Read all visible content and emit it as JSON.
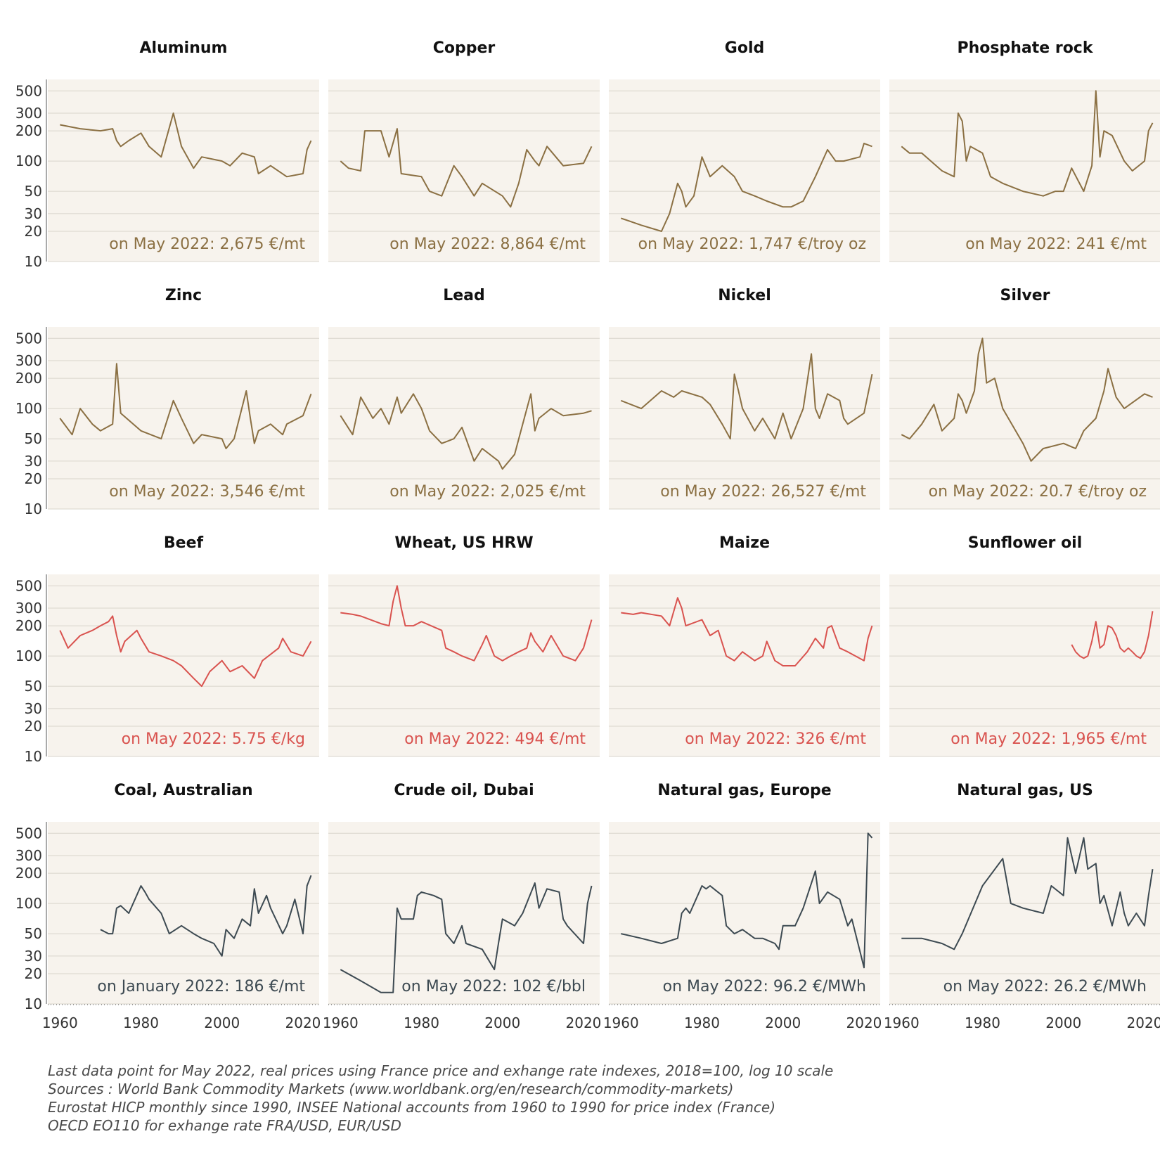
{
  "colors": {
    "panel_bg": "#f7f3ed",
    "grid": "#d9d4cc",
    "metals": "#8b7043",
    "food": "#d9534f",
    "energy": "#3d4a52",
    "title": "#111111",
    "tick": "#333333"
  },
  "footer": {
    "line1": "Last data point for May 2022, real prices using France price and exhange rate indexes, 2018=100, log 10 scale",
    "line2": "Sources : World Bank Commodity Markets (www.worldbank.org/en/research/commodity-markets)",
    "line3": "Eurostat HICP monthly since 1990, INSEE National accounts from 1960 to 1990 for price index (France)",
    "line4": "OECD EO110 for exhange rate FRA/USD, EUR/USD"
  },
  "chart_data": [
    {
      "type": "line",
      "title": "Aluminum",
      "annotation": "on May 2022: 2,675 €/mt",
      "color_group": "metals",
      "x": [
        1960,
        1965,
        1970,
        1973,
        1974,
        1975,
        1977,
        1980,
        1982,
        1985,
        1988,
        1990,
        1993,
        1995,
        2000,
        2002,
        2005,
        2008,
        2009,
        2012,
        2016,
        2020,
        2021,
        2022
      ],
      "values": [
        230,
        210,
        200,
        210,
        160,
        140,
        160,
        190,
        140,
        110,
        300,
        140,
        85,
        110,
        100,
        90,
        120,
        110,
        75,
        90,
        70,
        75,
        130,
        160
      ]
    },
    {
      "type": "line",
      "title": "Copper",
      "annotation": "on May 2022: 8,864 €/mt",
      "color_group": "metals",
      "x": [
        1960,
        1962,
        1965,
        1966,
        1970,
        1972,
        1974,
        1975,
        1980,
        1982,
        1985,
        1988,
        1990,
        1993,
        1995,
        2000,
        2002,
        2004,
        2006,
        2008,
        2009,
        2011,
        2015,
        2020,
        2022
      ],
      "values": [
        100,
        85,
        80,
        200,
        200,
        110,
        210,
        75,
        70,
        50,
        45,
        90,
        70,
        45,
        60,
        45,
        35,
        60,
        130,
        100,
        90,
        140,
        90,
        95,
        140
      ]
    },
    {
      "type": "line",
      "title": "Gold",
      "annotation": "on May 2022: 1,747 €/troy oz",
      "color_group": "metals",
      "x": [
        1960,
        1965,
        1970,
        1972,
        1974,
        1975,
        1976,
        1978,
        1980,
        1982,
        1985,
        1988,
        1990,
        1993,
        1996,
        2000,
        2002,
        2005,
        2008,
        2011,
        2013,
        2015,
        2019,
        2020,
        2022
      ],
      "values": [
        27,
        23,
        20,
        30,
        60,
        50,
        35,
        45,
        110,
        70,
        90,
        70,
        50,
        45,
        40,
        35,
        35,
        40,
        70,
        130,
        100,
        100,
        110,
        150,
        140
      ]
    },
    {
      "type": "line",
      "title": "Phosphate rock",
      "annotation": "on May 2022: 241 €/mt",
      "color_group": "metals",
      "x": [
        1960,
        1962,
        1965,
        1970,
        1973,
        1974,
        1975,
        1976,
        1977,
        1980,
        1982,
        1985,
        1990,
        1995,
        1998,
        2000,
        2002,
        2005,
        2007,
        2008,
        2009,
        2010,
        2012,
        2015,
        2017,
        2020,
        2021,
        2022
      ],
      "values": [
        140,
        120,
        120,
        80,
        70,
        300,
        250,
        100,
        140,
        120,
        70,
        60,
        50,
        45,
        50,
        50,
        85,
        50,
        90,
        500,
        110,
        200,
        180,
        100,
        80,
        100,
        200,
        240
      ]
    },
    {
      "type": "line",
      "title": "Zinc",
      "annotation": "on May 2022: 3,546 €/mt",
      "color_group": "metals",
      "x": [
        1960,
        1963,
        1965,
        1968,
        1970,
        1973,
        1974,
        1975,
        1980,
        1985,
        1988,
        1990,
        1993,
        1995,
        2000,
        2001,
        2003,
        2006,
        2007,
        2008,
        2009,
        2012,
        2015,
        2016,
        2020,
        2022
      ],
      "values": [
        80,
        55,
        100,
        70,
        60,
        70,
        280,
        90,
        60,
        50,
        120,
        80,
        45,
        55,
        50,
        40,
        50,
        150,
        80,
        45,
        60,
        70,
        55,
        70,
        85,
        140
      ]
    },
    {
      "type": "line",
      "title": "Lead",
      "annotation": "on May 2022: 2,025 €/mt",
      "color_group": "metals",
      "x": [
        1960,
        1963,
        1965,
        1968,
        1970,
        1972,
        1974,
        1975,
        1978,
        1980,
        1982,
        1985,
        1988,
        1990,
        1993,
        1995,
        1999,
        2000,
        2003,
        2005,
        2007,
        2008,
        2009,
        2012,
        2015,
        2020,
        2022
      ],
      "values": [
        85,
        55,
        130,
        80,
        100,
        70,
        130,
        90,
        140,
        100,
        60,
        45,
        50,
        65,
        30,
        40,
        30,
        25,
        35,
        70,
        140,
        60,
        80,
        100,
        85,
        90,
        95
      ]
    },
    {
      "type": "line",
      "title": "Nickel",
      "annotation": "on May 2022: 26,527 €/mt",
      "color_group": "metals",
      "x": [
        1960,
        1965,
        1970,
        1973,
        1975,
        1980,
        1982,
        1985,
        1987,
        1988,
        1989,
        1990,
        1993,
        1995,
        1998,
        2000,
        2002,
        2005,
        2007,
        2008,
        2009,
        2011,
        2014,
        2015,
        2016,
        2020,
        2022
      ],
      "values": [
        120,
        100,
        150,
        130,
        150,
        130,
        110,
        70,
        50,
        220,
        150,
        100,
        60,
        80,
        50,
        90,
        50,
        100,
        350,
        100,
        80,
        140,
        120,
        80,
        70,
        90,
        220
      ]
    },
    {
      "type": "line",
      "title": "Silver",
      "annotation": "on May 2022: 20.7 €/troy oz",
      "color_group": "metals",
      "x": [
        1960,
        1962,
        1965,
        1968,
        1970,
        1973,
        1974,
        1975,
        1976,
        1978,
        1979,
        1980,
        1981,
        1983,
        1985,
        1990,
        1992,
        1995,
        2000,
        2003,
        2005,
        2008,
        2010,
        2011,
        2013,
        2015,
        2020,
        2022
      ],
      "values": [
        55,
        50,
        70,
        110,
        60,
        80,
        140,
        120,
        90,
        150,
        350,
        500,
        180,
        200,
        100,
        45,
        30,
        40,
        45,
        40,
        60,
        80,
        150,
        250,
        130,
        100,
        140,
        130
      ]
    },
    {
      "type": "line",
      "title": "Beef",
      "annotation": "on May 2022: 5.75 €/kg",
      "color_group": "food",
      "x": [
        1960,
        1962,
        1965,
        1968,
        1970,
        1972,
        1973,
        1974,
        1975,
        1976,
        1979,
        1980,
        1982,
        1985,
        1988,
        1990,
        1993,
        1995,
        1997,
        2000,
        2002,
        2005,
        2008,
        2010,
        2014,
        2015,
        2017,
        2020,
        2022
      ],
      "values": [
        180,
        120,
        160,
        180,
        200,
        220,
        250,
        160,
        110,
        140,
        180,
        150,
        110,
        100,
        90,
        80,
        60,
        50,
        70,
        90,
        70,
        80,
        60,
        90,
        120,
        150,
        110,
        100,
        140
      ]
    },
    {
      "type": "line",
      "title": "Wheat, US HRW",
      "annotation": "on May 2022: 494 €/mt",
      "color_group": "food",
      "x": [
        1960,
        1963,
        1965,
        1970,
        1972,
        1973,
        1974,
        1975,
        1976,
        1978,
        1980,
        1985,
        1986,
        1988,
        1990,
        1993,
        1995,
        1996,
        1998,
        2000,
        2002,
        2004,
        2006,
        2007,
        2008,
        2010,
        2012,
        2015,
        2018,
        2020,
        2022
      ],
      "values": [
        270,
        260,
        250,
        210,
        200,
        350,
        500,
        300,
        200,
        200,
        220,
        180,
        120,
        110,
        100,
        90,
        130,
        160,
        100,
        90,
        100,
        110,
        120,
        170,
        140,
        110,
        160,
        100,
        90,
        120,
        230
      ]
    },
    {
      "type": "line",
      "title": "Maize",
      "annotation": "on May 2022: 326 €/mt",
      "color_group": "food",
      "x": [
        1960,
        1963,
        1965,
        1970,
        1972,
        1974,
        1975,
        1976,
        1980,
        1982,
        1984,
        1986,
        1988,
        1990,
        1993,
        1995,
        1996,
        1998,
        2000,
        2003,
        2006,
        2008,
        2010,
        2011,
        2012,
        2014,
        2016,
        2020,
        2021,
        2022
      ],
      "values": [
        270,
        260,
        270,
        250,
        200,
        380,
        300,
        200,
        230,
        160,
        180,
        100,
        90,
        110,
        90,
        100,
        140,
        90,
        80,
        80,
        110,
        150,
        120,
        190,
        200,
        120,
        110,
        90,
        150,
        200
      ]
    },
    {
      "type": "line",
      "title": "Sunflower oil",
      "annotation": "on May 2022: 1,965 €/mt",
      "color_group": "food",
      "x": [
        2002,
        2003,
        2004,
        2005,
        2006,
        2007,
        2008,
        2009,
        2010,
        2011,
        2012,
        2013,
        2014,
        2015,
        2016,
        2017,
        2018,
        2019,
        2020,
        2021,
        2022
      ],
      "values": [
        130,
        110,
        100,
        95,
        100,
        140,
        220,
        120,
        130,
        200,
        190,
        160,
        120,
        110,
        120,
        110,
        100,
        95,
        110,
        160,
        280
      ]
    },
    {
      "type": "line",
      "title": "Coal, Australian",
      "annotation": "on January 2022: 186 €/mt",
      "color_group": "energy",
      "x": [
        1970,
        1972,
        1973,
        1974,
        1975,
        1977,
        1980,
        1981,
        1982,
        1985,
        1987,
        1990,
        1993,
        1995,
        1998,
        2000,
        2001,
        2003,
        2005,
        2007,
        2008,
        2009,
        2011,
        2012,
        2015,
        2016,
        2018,
        2020,
        2021,
        2022
      ],
      "values": [
        55,
        50,
        50,
        90,
        95,
        80,
        150,
        130,
        110,
        80,
        50,
        60,
        50,
        45,
        40,
        30,
        55,
        45,
        70,
        60,
        140,
        80,
        120,
        90,
        50,
        60,
        110,
        50,
        150,
        190
      ]
    },
    {
      "type": "line",
      "title": "Crude oil, Dubai",
      "annotation": "on May 2022: 102 €/bbl",
      "color_group": "energy",
      "x": [
        1960,
        1965,
        1970,
        1973,
        1974,
        1975,
        1978,
        1979,
        1980,
        1983,
        1985,
        1986,
        1988,
        1990,
        1991,
        1995,
        1998,
        1999,
        2000,
        2003,
        2005,
        2008,
        2009,
        2011,
        2014,
        2015,
        2016,
        2020,
        2021,
        2022
      ],
      "values": [
        22,
        17,
        13,
        13,
        90,
        70,
        70,
        120,
        130,
        120,
        110,
        50,
        40,
        60,
        40,
        35,
        22,
        40,
        70,
        60,
        80,
        160,
        90,
        140,
        130,
        70,
        60,
        40,
        100,
        150
      ]
    },
    {
      "type": "line",
      "title": "Natural gas, Europe",
      "annotation": "on May 2022: 96.2 €/MWh",
      "color_group": "energy",
      "x": [
        1960,
        1965,
        1970,
        1974,
        1975,
        1976,
        1977,
        1980,
        1981,
        1982,
        1985,
        1986,
        1988,
        1990,
        1993,
        1995,
        1998,
        1999,
        2000,
        2003,
        2005,
        2008,
        2009,
        2011,
        2014,
        2016,
        2017,
        2020,
        2021,
        2022
      ],
      "values": [
        50,
        45,
        40,
        45,
        80,
        90,
        80,
        150,
        140,
        150,
        120,
        60,
        50,
        55,
        45,
        45,
        40,
        35,
        60,
        60,
        90,
        210,
        100,
        130,
        110,
        60,
        70,
        23,
        500,
        450
      ]
    },
    {
      "type": "line",
      "title": "Natural gas, US",
      "annotation": "on May 2022: 26.2 €/MWh",
      "color_group": "energy",
      "x": [
        1960,
        1965,
        1970,
        1973,
        1975,
        1980,
        1985,
        1987,
        1990,
        1995,
        1997,
        2000,
        2001,
        2003,
        2005,
        2006,
        2008,
        2009,
        2010,
        2012,
        2014,
        2015,
        2016,
        2018,
        2020,
        2021,
        2022
      ],
      "values": [
        45,
        45,
        40,
        35,
        50,
        150,
        280,
        100,
        90,
        80,
        150,
        120,
        450,
        200,
        450,
        220,
        250,
        100,
        120,
        60,
        130,
        80,
        60,
        80,
        60,
        120,
        220
      ]
    }
  ]
}
